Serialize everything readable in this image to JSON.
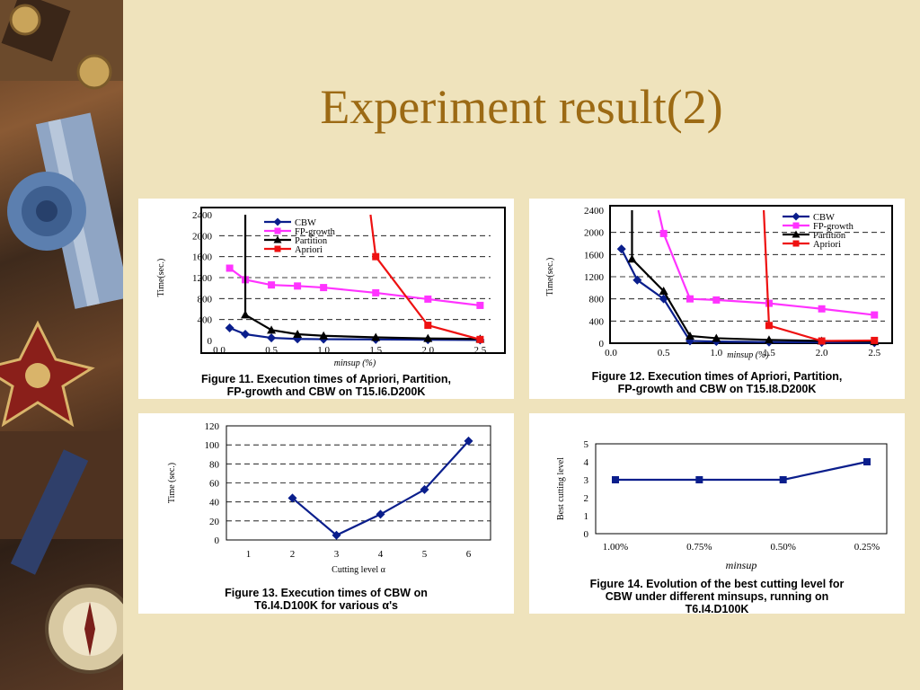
{
  "title": "Experiment result(2)",
  "colors": {
    "background": "#EFE3BC",
    "title": "#9C6A14",
    "CBW": "#0A1E8C",
    "FP-growth": "#FF33FF",
    "Partition": "#000000",
    "Apriori": "#EE1111"
  },
  "chart_data": [
    {
      "type": "line",
      "caption_lines": [
        "Figure 11. Execution times of Apriori, Partition,",
        "FP-growth and CBW on T15.I6.D200K"
      ],
      "ylabel": "Time(sec.)",
      "xlabel": "minsup (%)",
      "xlim": [
        0,
        2.6
      ],
      "ylim": [
        0,
        2400
      ],
      "xticks": [
        "0.0",
        "0.5",
        "1.0",
        "1.5",
        "2.0",
        "2.5"
      ],
      "yticks": [
        "0",
        "400",
        "800",
        "1200",
        "1600",
        "2000",
        "2400"
      ],
      "grid": "horizontal-dashed",
      "legend": "top-left",
      "series": [
        {
          "name": "CBW",
          "color": "#0A1E8C",
          "marker": "diamond",
          "x": [
            0.1,
            0.25,
            0.5,
            0.75,
            1.0,
            1.5,
            2.0,
            2.5
          ],
          "y": [
            240,
            120,
            50,
            30,
            25,
            20,
            15,
            10
          ]
        },
        {
          "name": "FP-growth",
          "color": "#FF33FF",
          "marker": "square",
          "x": [
            0.1,
            0.25,
            0.5,
            0.75,
            1.0,
            1.5,
            2.0,
            2.5
          ],
          "y": [
            1380,
            1160,
            1060,
            1040,
            1010,
            910,
            790,
            670
          ]
        },
        {
          "name": "Partition",
          "color": "#000000",
          "marker": "triangle",
          "x": [
            0.25,
            0.25,
            0.5,
            0.75,
            1.0,
            1.5,
            2.0,
            2.5
          ],
          "y": [
            2400,
            490,
            200,
            120,
            90,
            60,
            40,
            30
          ]
        },
        {
          "name": "Apriori",
          "color": "#EE1111",
          "marker": "square",
          "x": [
            1.45,
            1.5,
            2.0,
            2.5
          ],
          "y": [
            2400,
            1600,
            290,
            20
          ]
        }
      ]
    },
    {
      "type": "line",
      "caption_lines": [
        "Figure 12. Execution times of Apriori, Partition,",
        "FP-growth and CBW on T15.I8.D200K"
      ],
      "ylabel": "Time(sec.)",
      "xlabel": "minsup (%)",
      "xlim": [
        0,
        2.6
      ],
      "ylim": [
        0,
        2400
      ],
      "xticks": [
        "0.0",
        "0.5",
        "1.0",
        "1.5",
        "2.0",
        "2.5"
      ],
      "yticks": [
        "0",
        "400",
        "800",
        "1200",
        "1600",
        "2000",
        "2400"
      ],
      "grid": "horizontal-dashed",
      "legend": "top-right",
      "series": [
        {
          "name": "CBW",
          "color": "#0A1E8C",
          "marker": "diamond",
          "x": [
            0.1,
            0.25,
            0.5,
            0.75,
            1.0,
            1.5,
            2.0,
            2.5
          ],
          "y": [
            1700,
            1140,
            800,
            40,
            30,
            20,
            15,
            10
          ]
        },
        {
          "name": "FP-growth",
          "color": "#FF33FF",
          "marker": "square",
          "x": [
            0.45,
            0.5,
            0.75,
            1.0,
            1.5,
            2.0,
            2.5
          ],
          "y": [
            2400,
            1980,
            800,
            780,
            720,
            620,
            510
          ]
        },
        {
          "name": "Partition",
          "color": "#000000",
          "marker": "triangle",
          "x": [
            0.2,
            0.2,
            0.5,
            0.75,
            1.0,
            1.5,
            2.0,
            2.5
          ],
          "y": [
            2400,
            1520,
            940,
            130,
            90,
            60,
            40,
            30
          ]
        },
        {
          "name": "Apriori",
          "color": "#EE1111",
          "marker": "square",
          "x": [
            1.45,
            1.5,
            2.0,
            2.5
          ],
          "y": [
            2400,
            320,
            40,
            50
          ]
        }
      ]
    },
    {
      "type": "line",
      "caption_lines": [
        "Figure 13. Execution times of CBW on",
        "T6.I4.D100K for various α's"
      ],
      "ylabel": "Time (sec.)",
      "xlabel": "Cutting level α",
      "xlim": [
        0.5,
        6.5
      ],
      "ylim": [
        0,
        120
      ],
      "xticks": [
        "1",
        "2",
        "3",
        "4",
        "5",
        "6"
      ],
      "yticks": [
        "0",
        "20",
        "40",
        "60",
        "80",
        "100",
        "120"
      ],
      "grid": "horizontal-dashed",
      "series": [
        {
          "name": "",
          "color": "#0A1E8C",
          "marker": "diamond",
          "x": [
            2,
            3,
            4,
            5,
            6
          ],
          "y": [
            44,
            5,
            27,
            53,
            104
          ]
        }
      ]
    },
    {
      "type": "line",
      "caption_lines": [
        "Figure 14. Evolution of the best cutting level for",
        "CBW under different minsups, running on",
        "T6.I4.D100K"
      ],
      "ylabel": "Best cutting level",
      "xlabel": "minsup",
      "ylim": [
        0,
        5
      ],
      "categories": [
        "1.00%",
        "0.75%",
        "0.50%",
        "0.25%"
      ],
      "yticks": [
        "0",
        "1",
        "2",
        "3",
        "4",
        "5"
      ],
      "grid": "none",
      "series": [
        {
          "name": "",
          "color": "#0A1E8C",
          "marker": "square",
          "y": [
            3,
            3,
            3,
            4
          ]
        }
      ]
    }
  ]
}
